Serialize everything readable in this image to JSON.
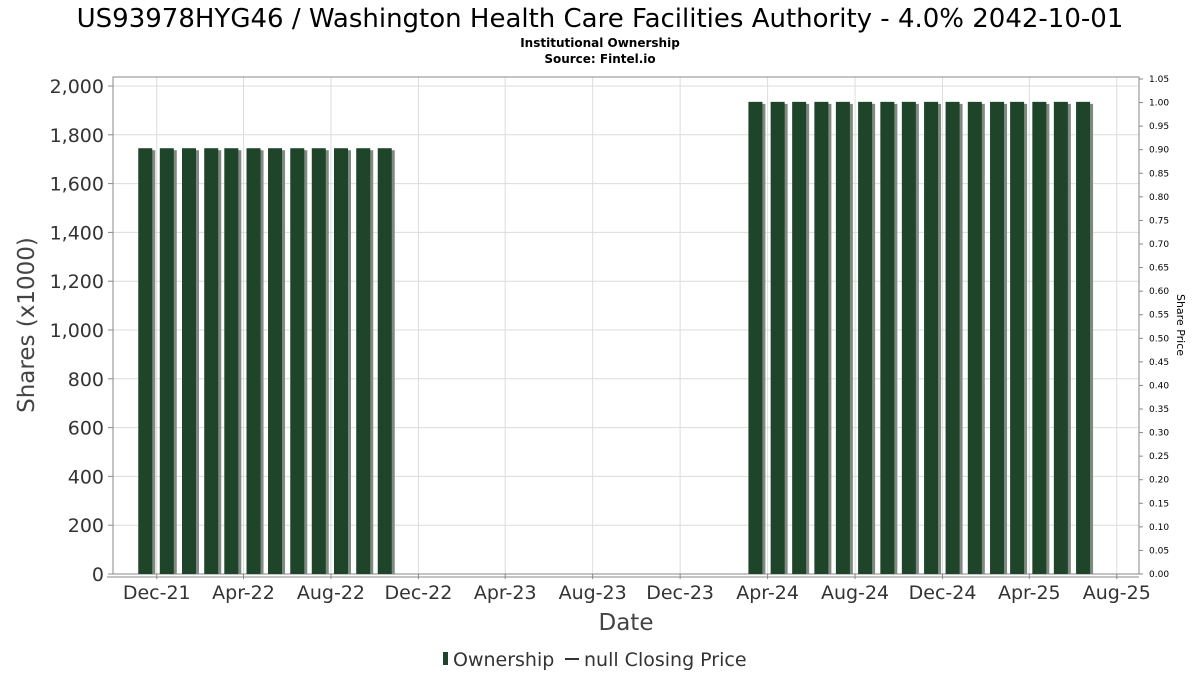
{
  "header": {
    "title": "US93978HYG46 / Washington Health Care Facilities Authority - 4.0% 2042-10-01",
    "subtitle_1": "Institutional Ownership",
    "subtitle_2": "Source: Fintel.io"
  },
  "legend": {
    "ownership_label": "Ownership",
    "price_label": "null Closing Price"
  },
  "colors": {
    "bar": "#1e4429",
    "bar_shadow": "#7f8a80",
    "grid": "#dcdcdc",
    "axis": "#888888"
  },
  "chart_data": {
    "type": "bar",
    "title": "US93978HYG46 / Washington Health Care Facilities Authority - 4.0% 2042-10-01",
    "subtitle": "Institutional Ownership",
    "xlabel": "Date",
    "ylabel": "Shares (x1000)",
    "ylabel_right": "Share Price",
    "ylim": [
      0,
      2000
    ],
    "ylim_right": [
      0,
      1.05
    ],
    "yticks": [
      "0",
      "200",
      "400",
      "600",
      "800",
      "1,000",
      "1,200",
      "1,400",
      "1,600",
      "1,800",
      "2,000"
    ],
    "yticks_right": [
      "0.00",
      "0.05",
      "0.10",
      "0.15",
      "0.20",
      "0.25",
      "0.30",
      "0.35",
      "0.40",
      "0.45",
      "0.50",
      "0.55",
      "0.60",
      "0.65",
      "0.70",
      "0.75",
      "0.80",
      "0.85",
      "0.90",
      "0.95",
      "1.00",
      "1.05"
    ],
    "xlim": [
      "2021-10-01",
      "2025-09-01"
    ],
    "xticks": [
      {
        "date": "2021-12-01",
        "label": "Dec-21"
      },
      {
        "date": "2022-04-01",
        "label": "Apr-22"
      },
      {
        "date": "2022-08-01",
        "label": "Aug-22"
      },
      {
        "date": "2022-12-01",
        "label": "Dec-22"
      },
      {
        "date": "2023-04-01",
        "label": "Apr-23"
      },
      {
        "date": "2023-08-01",
        "label": "Aug-23"
      },
      {
        "date": "2023-12-01",
        "label": "Dec-23"
      },
      {
        "date": "2024-04-01",
        "label": "Apr-24"
      },
      {
        "date": "2024-08-01",
        "label": "Aug-24"
      },
      {
        "date": "2024-12-01",
        "label": "Dec-24"
      },
      {
        "date": "2025-04-01",
        "label": "Apr-25"
      },
      {
        "date": "2025-08-01",
        "label": "Aug-25"
      }
    ],
    "grid": true,
    "legend_position": "bottom",
    "series": [
      {
        "name": "Ownership",
        "points": [
          {
            "date": "2021-11-15",
            "value": 1745
          },
          {
            "date": "2021-12-15",
            "value": 1745
          },
          {
            "date": "2022-01-15",
            "value": 1745
          },
          {
            "date": "2022-02-15",
            "value": 1745
          },
          {
            "date": "2022-03-15",
            "value": 1745
          },
          {
            "date": "2022-04-15",
            "value": 1745
          },
          {
            "date": "2022-05-15",
            "value": 1745
          },
          {
            "date": "2022-06-15",
            "value": 1745
          },
          {
            "date": "2022-07-15",
            "value": 1745
          },
          {
            "date": "2022-08-15",
            "value": 1745
          },
          {
            "date": "2022-09-15",
            "value": 1745
          },
          {
            "date": "2022-10-15",
            "value": 1745
          },
          {
            "date": "2024-03-15",
            "value": 1935
          },
          {
            "date": "2024-04-15",
            "value": 1935
          },
          {
            "date": "2024-05-15",
            "value": 1935
          },
          {
            "date": "2024-06-15",
            "value": 1935
          },
          {
            "date": "2024-07-15",
            "value": 1935
          },
          {
            "date": "2024-08-15",
            "value": 1935
          },
          {
            "date": "2024-09-15",
            "value": 1935
          },
          {
            "date": "2024-10-15",
            "value": 1935
          },
          {
            "date": "2024-11-15",
            "value": 1935
          },
          {
            "date": "2024-12-15",
            "value": 1935
          },
          {
            "date": "2025-01-15",
            "value": 1935
          },
          {
            "date": "2025-02-15",
            "value": 1935
          },
          {
            "date": "2025-03-15",
            "value": 1935
          },
          {
            "date": "2025-04-15",
            "value": 1935
          },
          {
            "date": "2025-05-15",
            "value": 1935
          },
          {
            "date": "2025-06-15",
            "value": 1935
          }
        ]
      },
      {
        "name": "null Closing Price",
        "points": []
      }
    ]
  }
}
